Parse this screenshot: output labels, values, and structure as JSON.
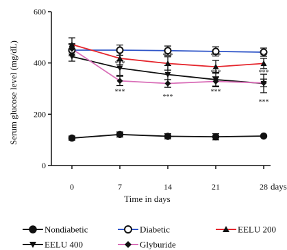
{
  "chart_data": {
    "type": "line",
    "title": "",
    "xlabel": "Time in days",
    "x_unit": "days",
    "ylabel": "Serum glucose level (mg/dL)",
    "x": [
      0,
      7,
      14,
      21,
      28
    ],
    "x_tick_labels": [
      "0",
      "7",
      "14",
      "21",
      "28"
    ],
    "y_ticks": [
      0,
      200,
      400,
      600
    ],
    "y_tick_labels": [
      "0",
      "200",
      "400",
      "600"
    ],
    "xlim": [
      -3,
      29
    ],
    "ylim": [
      0,
      600
    ],
    "grid": false,
    "legend_position": "bottom",
    "series": [
      {
        "name": "Nondiabetic",
        "values": [
          107,
          121,
          114,
          112,
          115
        ],
        "errors": [
          8,
          10,
          10,
          12,
          4
        ],
        "marker": "circle-filled",
        "color": "#111111"
      },
      {
        "name": "Diabetic",
        "values": [
          450,
          450,
          448,
          445,
          442
        ],
        "errors": [
          22,
          20,
          18,
          18,
          16
        ],
        "marker": "circle-open",
        "color": "#2f55c8"
      },
      {
        "name": "EELU 200",
        "values": [
          472,
          418,
          398,
          385,
          398
        ],
        "errors": [
          26,
          25,
          26,
          25,
          20
        ],
        "marker": "triangle-up",
        "color": "#e5262d"
      },
      {
        "name": "EELU 400",
        "values": [
          425,
          380,
          355,
          335,
          320
        ],
        "errors": [
          18,
          28,
          35,
          28,
          36
        ],
        "marker": "triangle-down",
        "color": "#111111"
      },
      {
        "name": "Glyburide",
        "values": [
          455,
          330,
          320,
          328,
          322
        ],
        "errors": [
          20,
          18,
          15,
          18,
          15
        ],
        "marker": "diamond",
        "color": "#d96fb8"
      }
    ],
    "annotations": [
      {
        "text": "*",
        "x": 7,
        "y": 420
      },
      {
        "text": "***",
        "x": 7,
        "y": 390
      },
      {
        "text": "***",
        "x": 7,
        "y": 280
      },
      {
        "text": "***",
        "x": 14,
        "y": 420
      },
      {
        "text": "***",
        "x": 14,
        "y": 260
      },
      {
        "text": "***",
        "x": 21,
        "y": 420
      },
      {
        "text": "***",
        "x": 21,
        "y": 355
      },
      {
        "text": "***",
        "x": 21,
        "y": 280
      },
      {
        "text": "**",
        "x": 28,
        "y": 420
      },
      {
        "text": "***",
        "x": 28,
        "y": 355
      },
      {
        "text": "***",
        "x": 28,
        "y": 240
      }
    ]
  }
}
